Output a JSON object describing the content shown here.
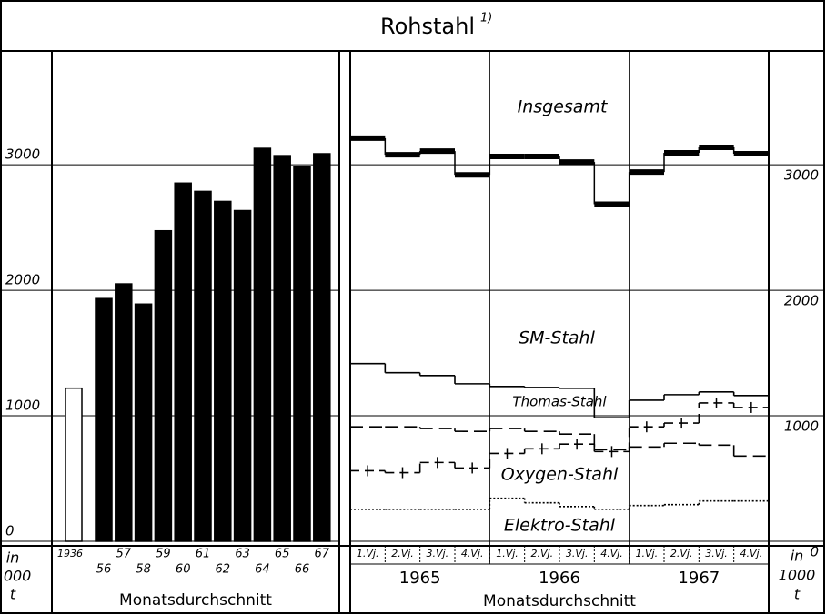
{
  "title": "Rohstahl",
  "title_note": "1)",
  "chart_data": [
    {
      "type": "bar",
      "categories": [
        "1936",
        "56",
        "57",
        "58",
        "59",
        "60",
        "61",
        "62",
        "63",
        "64",
        "65",
        "66",
        "67"
      ],
      "values": [
        1220,
        1934,
        2051,
        1890,
        2474,
        2854,
        2788,
        2708,
        2635,
        3131,
        3073,
        2985,
        3088
      ],
      "colors": [
        "#ffffff",
        "#000000",
        "#000000",
        "#000000",
        "#000000",
        "#000000",
        "#000000",
        "#000000",
        "#000000",
        "#000000",
        "#000000",
        "#000000",
        "#000000"
      ],
      "ylim": [
        0,
        3900
      ],
      "yticks": [
        0,
        1000,
        2000,
        3000
      ],
      "grid": true,
      "unit": [
        "in",
        "1000",
        "t"
      ],
      "xlabel": "Monatsdurchschnitt"
    },
    {
      "type": "step",
      "categories": [
        "1.Vj.",
        "2.Vj.",
        "3.Vj.",
        "4.Vj.",
        "1.Vj.",
        "2.Vj.",
        "3.Vj.",
        "4.Vj.",
        "1.Vj.",
        "2.Vj.",
        "3.Vj.",
        "4.Vj."
      ],
      "groups": [
        "1965",
        "1966",
        "1967"
      ],
      "series": [
        {
          "name": "Insgesamt",
          "color": "#000000",
          "style": "thick",
          "values": [
            3212,
            3080,
            3109,
            2920,
            3066,
            3066,
            3022,
            2686,
            2942,
            3095,
            3139,
            3088
          ]
        },
        {
          "name": "SM-Stahl",
          "color": "#000000",
          "style": "solid",
          "values": [
            1416,
            1343,
            1321,
            1255,
            1234,
            1226,
            1219,
            985,
            1124,
            1168,
            1190,
            1161
          ]
        },
        {
          "name": "Thomas-Stahl",
          "color": "#000000",
          "style": "dashed",
          "values": [
            912,
            912,
            898,
            876,
            898,
            876,
            854,
            730,
            752,
            781,
            766,
            679
          ]
        },
        {
          "name": "Oxygen-Stahl",
          "color": "#000000",
          "style": "plus",
          "values": [
            562,
            547,
            628,
            584,
            700,
            737,
            774,
            715,
            912,
            942,
            1102,
            1066
          ]
        },
        {
          "name": "Elektro-Stahl",
          "color": "#000000",
          "style": "dotted",
          "values": [
            255,
            255,
            255,
            255,
            343,
            307,
            277,
            255,
            285,
            292,
            321,
            321
          ]
        }
      ],
      "ylim": [
        0,
        3900
      ],
      "yticks": [
        0,
        1000,
        2000,
        3000
      ],
      "grid": true,
      "unit": [
        "in",
        "1000",
        "t"
      ],
      "xlabel": "Monatsdurchschnitt"
    }
  ]
}
